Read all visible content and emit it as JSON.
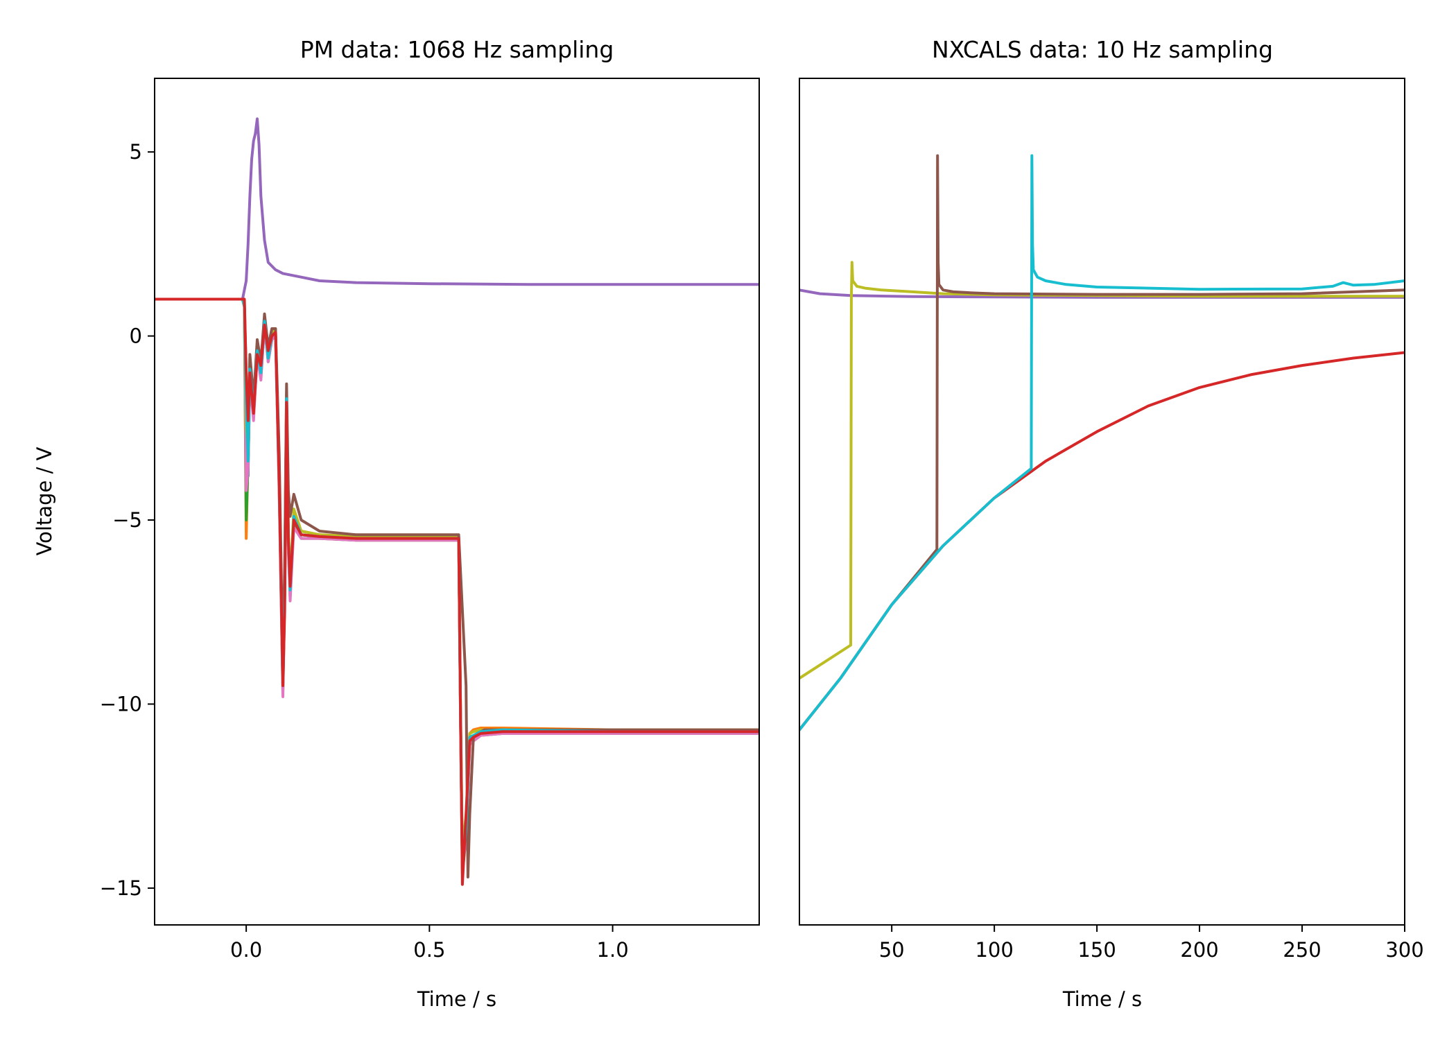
{
  "chart_data": [
    {
      "type": "line",
      "title": "PM data: 1068 Hz sampling",
      "xlabel": "Time / s",
      "ylabel": "Voltage / V",
      "xlim": [
        -0.25,
        1.4
      ],
      "ylim": [
        -16,
        7
      ],
      "xticks": [
        0.0,
        0.5,
        1.0
      ],
      "xtick_labels": [
        "0.0",
        "0.5",
        "1.0"
      ],
      "yticks": [
        5,
        0,
        -5,
        -10,
        -15
      ],
      "ytick_labels": [
        "5",
        "0",
        "−5",
        "−10",
        "−15"
      ],
      "grid": false,
      "legend": "none",
      "series": [
        {
          "color": "#9467bd",
          "x": [
            -0.25,
            -0.01,
            0.0,
            0.005,
            0.01,
            0.015,
            0.02,
            0.025,
            0.03,
            0.035,
            0.04,
            0.05,
            0.06,
            0.08,
            0.1,
            0.15,
            0.2,
            0.3,
            0.5,
            0.8,
            1.1,
            1.4
          ],
          "y": [
            1.0,
            1.0,
            1.5,
            2.5,
            3.8,
            4.8,
            5.3,
            5.5,
            5.9,
            5.2,
            3.8,
            2.6,
            2.0,
            1.8,
            1.7,
            1.6,
            1.5,
            1.45,
            1.42,
            1.4,
            1.4,
            1.4
          ]
        },
        {
          "color": "#1f77b4",
          "x": [
            -0.25,
            -0.01,
            -0.005,
            0.0,
            0.005,
            0.01,
            0.02,
            0.03,
            0.04,
            0.05,
            0.06,
            0.07,
            0.08,
            0.09,
            0.1,
            0.105,
            0.11,
            0.115,
            0.12,
            0.13,
            0.15,
            0.2,
            0.3,
            0.58,
            0.585,
            0.59,
            0.6,
            0.61,
            0.62,
            0.64,
            0.7,
            1.0,
            1.4
          ],
          "y": [
            1.0,
            1.0,
            0.8,
            -1.5,
            -3.8,
            -1.0,
            -2.1,
            -0.4,
            -1.0,
            0.4,
            -0.6,
            0.0,
            0.1,
            -4.0,
            -9.6,
            -7.0,
            -1.8,
            -5.6,
            -7.0,
            -5.0,
            -5.4,
            -5.45,
            -5.5,
            -5.5,
            -10.5,
            -14.5,
            -13.5,
            -11.0,
            -10.9,
            -10.8,
            -10.75,
            -10.75,
            -10.75
          ]
        },
        {
          "color": "#ff7f0e",
          "x": [
            -0.25,
            -0.01,
            -0.005,
            0.0,
            0.005,
            0.01,
            0.02,
            0.03,
            0.04,
            0.05,
            0.06,
            0.07,
            0.08,
            0.09,
            0.1,
            0.105,
            0.11,
            0.115,
            0.12,
            0.13,
            0.15,
            0.2,
            0.3,
            0.58,
            0.585,
            0.59,
            0.6,
            0.61,
            0.62,
            0.64,
            0.7,
            1.0,
            1.4
          ],
          "y": [
            1.0,
            1.0,
            0.8,
            -5.5,
            -3.2,
            -0.8,
            -2.0,
            -0.3,
            -0.9,
            0.5,
            -0.5,
            0.1,
            0.2,
            -4.2,
            -9.4,
            -6.8,
            -1.6,
            -5.4,
            -6.8,
            -4.8,
            -5.3,
            -5.4,
            -5.45,
            -5.45,
            -10.3,
            -14.2,
            -13.2,
            -10.8,
            -10.7,
            -10.65,
            -10.65,
            -10.7,
            -10.7
          ]
        },
        {
          "color": "#2ca02c",
          "x": [
            -0.25,
            -0.01,
            -0.005,
            0.0,
            0.005,
            0.01,
            0.02,
            0.03,
            0.04,
            0.05,
            0.06,
            0.07,
            0.08,
            0.09,
            0.1,
            0.105,
            0.11,
            0.115,
            0.12,
            0.13,
            0.15,
            0.2,
            0.3,
            0.58,
            0.585,
            0.59,
            0.6,
            0.61,
            0.62,
            0.64,
            0.7,
            1.0,
            1.4
          ],
          "y": [
            1.0,
            1.0,
            0.8,
            -5.0,
            -3.5,
            -1.1,
            -2.2,
            -0.5,
            -1.1,
            0.3,
            -0.7,
            -0.1,
            0.0,
            -4.1,
            -9.7,
            -7.1,
            -1.9,
            -5.7,
            -7.1,
            -5.1,
            -5.5,
            -5.5,
            -5.55,
            -5.55,
            -10.6,
            -14.6,
            -13.6,
            -11.1,
            -11.0,
            -10.85,
            -10.8,
            -10.8,
            -10.8
          ]
        },
        {
          "color": "#e377c2",
          "x": [
            -0.25,
            -0.01,
            -0.005,
            0.0,
            0.005,
            0.01,
            0.02,
            0.03,
            0.04,
            0.05,
            0.06,
            0.07,
            0.08,
            0.09,
            0.1,
            0.105,
            0.11,
            0.115,
            0.12,
            0.13,
            0.15,
            0.2,
            0.3,
            0.58,
            0.585,
            0.59,
            0.6,
            0.61,
            0.62,
            0.64,
            0.7,
            1.0,
            1.4
          ],
          "y": [
            1.0,
            1.0,
            0.8,
            -4.2,
            -3.6,
            -1.2,
            -2.3,
            -0.5,
            -1.2,
            0.3,
            -0.7,
            -0.1,
            0.0,
            -4.3,
            -9.8,
            -7.2,
            -2.0,
            -5.8,
            -7.2,
            -5.2,
            -5.5,
            -5.5,
            -5.55,
            -5.55,
            -10.6,
            -14.4,
            -13.7,
            -11.1,
            -11.0,
            -10.85,
            -10.8,
            -10.8,
            -10.8
          ]
        },
        {
          "color": "#bcbd22",
          "x": [
            -0.25,
            -0.01,
            -0.005,
            0.0,
            0.005,
            0.01,
            0.02,
            0.03,
            0.04,
            0.05,
            0.06,
            0.07,
            0.08,
            0.09,
            0.1,
            0.105,
            0.11,
            0.115,
            0.12,
            0.13,
            0.15,
            0.2,
            0.3,
            0.58,
            0.585,
            0.59,
            0.6,
            0.61,
            0.62,
            0.64,
            0.7,
            1.0,
            1.4
          ],
          "y": [
            1.0,
            1.0,
            0.8,
            -2.5,
            -3.0,
            -0.6,
            -1.8,
            -0.2,
            -0.8,
            0.5,
            -0.4,
            0.1,
            0.2,
            -3.8,
            -9.2,
            -6.6,
            -1.5,
            -5.3,
            -6.6,
            -4.7,
            -5.3,
            -5.4,
            -5.45,
            -5.45,
            -10.2,
            -14.0,
            -13.0,
            -10.8,
            -10.75,
            -10.7,
            -10.7,
            -10.7,
            -10.7
          ]
        },
        {
          "color": "#8c564b",
          "x": [
            -0.25,
            -0.01,
            -0.005,
            0.0,
            0.005,
            0.01,
            0.02,
            0.03,
            0.04,
            0.05,
            0.06,
            0.07,
            0.08,
            0.09,
            0.1,
            0.105,
            0.11,
            0.115,
            0.12,
            0.13,
            0.15,
            0.2,
            0.3,
            0.58,
            0.6,
            0.605,
            0.61,
            0.62,
            0.63,
            0.65,
            0.7,
            1.0,
            1.4
          ],
          "y": [
            1.0,
            1.0,
            0.9,
            -1.0,
            -2.8,
            -0.5,
            -1.7,
            -0.1,
            -0.7,
            0.6,
            -0.3,
            0.2,
            0.2,
            -3.2,
            -9.0,
            -6.2,
            -1.3,
            -4.2,
            -4.9,
            -4.3,
            -5.0,
            -5.3,
            -5.4,
            -5.4,
            -9.5,
            -14.7,
            -13.0,
            -10.9,
            -10.8,
            -10.7,
            -10.7,
            -10.7,
            -10.7
          ]
        },
        {
          "color": "#17becf",
          "x": [
            -0.25,
            -0.01,
            -0.005,
            0.0,
            0.005,
            0.01,
            0.02,
            0.03,
            0.04,
            0.05,
            0.06,
            0.07,
            0.08,
            0.09,
            0.1,
            0.105,
            0.11,
            0.115,
            0.12,
            0.13,
            0.15,
            0.2,
            0.3,
            0.58,
            0.585,
            0.59,
            0.6,
            0.61,
            0.62,
            0.64,
            0.7,
            1.0,
            1.4
          ],
          "y": [
            1.0,
            1.0,
            0.8,
            -1.8,
            -3.4,
            -0.9,
            -2.0,
            -0.4,
            -1.0,
            0.4,
            -0.6,
            0.0,
            0.1,
            -4.0,
            -9.5,
            -6.9,
            -1.7,
            -5.5,
            -6.9,
            -4.9,
            -5.4,
            -5.45,
            -5.5,
            -5.5,
            -10.4,
            -14.3,
            -13.4,
            -10.9,
            -10.85,
            -10.75,
            -10.7,
            -10.75,
            -10.75
          ]
        },
        {
          "color": "#d62728",
          "x": [
            -0.25,
            -0.01,
            -0.005,
            0.0,
            0.005,
            0.01,
            0.02,
            0.03,
            0.04,
            0.05,
            0.06,
            0.07,
            0.08,
            0.09,
            0.1,
            0.105,
            0.11,
            0.115,
            0.12,
            0.13,
            0.15,
            0.2,
            0.3,
            0.58,
            0.585,
            0.59,
            0.6,
            0.61,
            0.62,
            0.64,
            0.7,
            1.0,
            1.4
          ],
          "y": [
            1.0,
            1.0,
            1.0,
            -1.0,
            -2.3,
            -1.0,
            -2.1,
            -0.5,
            -0.8,
            0.3,
            -0.4,
            0.0,
            0.1,
            -4.0,
            -9.5,
            -7.5,
            -1.8,
            -5.5,
            -6.8,
            -5.0,
            -5.4,
            -5.45,
            -5.5,
            -5.5,
            -10.4,
            -14.9,
            -13.0,
            -11.0,
            -10.9,
            -10.8,
            -10.75,
            -10.75,
            -10.75
          ]
        }
      ]
    },
    {
      "type": "line",
      "title": "NXCALS data: 10 Hz sampling",
      "xlabel": "Time / s",
      "xlim": [
        5,
        300
      ],
      "ylim": [
        -16,
        7
      ],
      "xticks": [
        50,
        100,
        150,
        200,
        250,
        300
      ],
      "xtick_labels": [
        "50",
        "100",
        "150",
        "200",
        "250",
        "300"
      ],
      "grid": false,
      "legend": "none",
      "series": [
        {
          "color": "#d62728",
          "x": [
            5,
            25,
            50,
            75,
            100,
            125,
            150,
            175,
            200,
            225,
            250,
            275,
            300
          ],
          "y": [
            -10.7,
            -9.3,
            -7.3,
            -5.7,
            -4.4,
            -3.4,
            -2.6,
            -1.9,
            -1.4,
            -1.05,
            -0.8,
            -0.6,
            -0.45
          ]
        },
        {
          "color": "#9467bd",
          "x": [
            5,
            15,
            30,
            60,
            100,
            150,
            200,
            250,
            300
          ],
          "y": [
            1.25,
            1.15,
            1.1,
            1.07,
            1.06,
            1.05,
            1.05,
            1.05,
            1.05
          ]
        },
        {
          "color": "#bcbd22",
          "x": [
            5,
            30,
            30,
            30.3,
            30.6,
            31,
            33,
            37,
            45,
            60,
            75,
            100,
            150,
            200,
            250,
            300
          ],
          "y": [
            -9.3,
            -8.4,
            -8.4,
            1.0,
            2.0,
            1.5,
            1.35,
            1.3,
            1.25,
            1.2,
            1.15,
            1.12,
            1.1,
            1.08,
            1.08,
            1.08
          ]
        },
        {
          "color": "#8c564b",
          "x": [
            5,
            25,
            50,
            72,
            72,
            72.3,
            72.6,
            73,
            75,
            80,
            90,
            100,
            150,
            200,
            250,
            300
          ],
          "y": [
            -10.7,
            -9.3,
            -7.3,
            -5.8,
            -5.8,
            4.9,
            2.0,
            1.4,
            1.25,
            1.2,
            1.17,
            1.15,
            1.13,
            1.13,
            1.15,
            1.25
          ]
        },
        {
          "color": "#17becf",
          "x": [
            5,
            25,
            50,
            75,
            100,
            118,
            118,
            118.3,
            118.6,
            119,
            121,
            125,
            135,
            150,
            200,
            250,
            265,
            270,
            275,
            285,
            300
          ],
          "y": [
            -10.7,
            -9.3,
            -7.3,
            -5.7,
            -4.4,
            -3.6,
            -3.6,
            4.9,
            2.5,
            1.8,
            1.6,
            1.5,
            1.4,
            1.33,
            1.27,
            1.28,
            1.35,
            1.45,
            1.38,
            1.4,
            1.5
          ]
        }
      ]
    }
  ]
}
